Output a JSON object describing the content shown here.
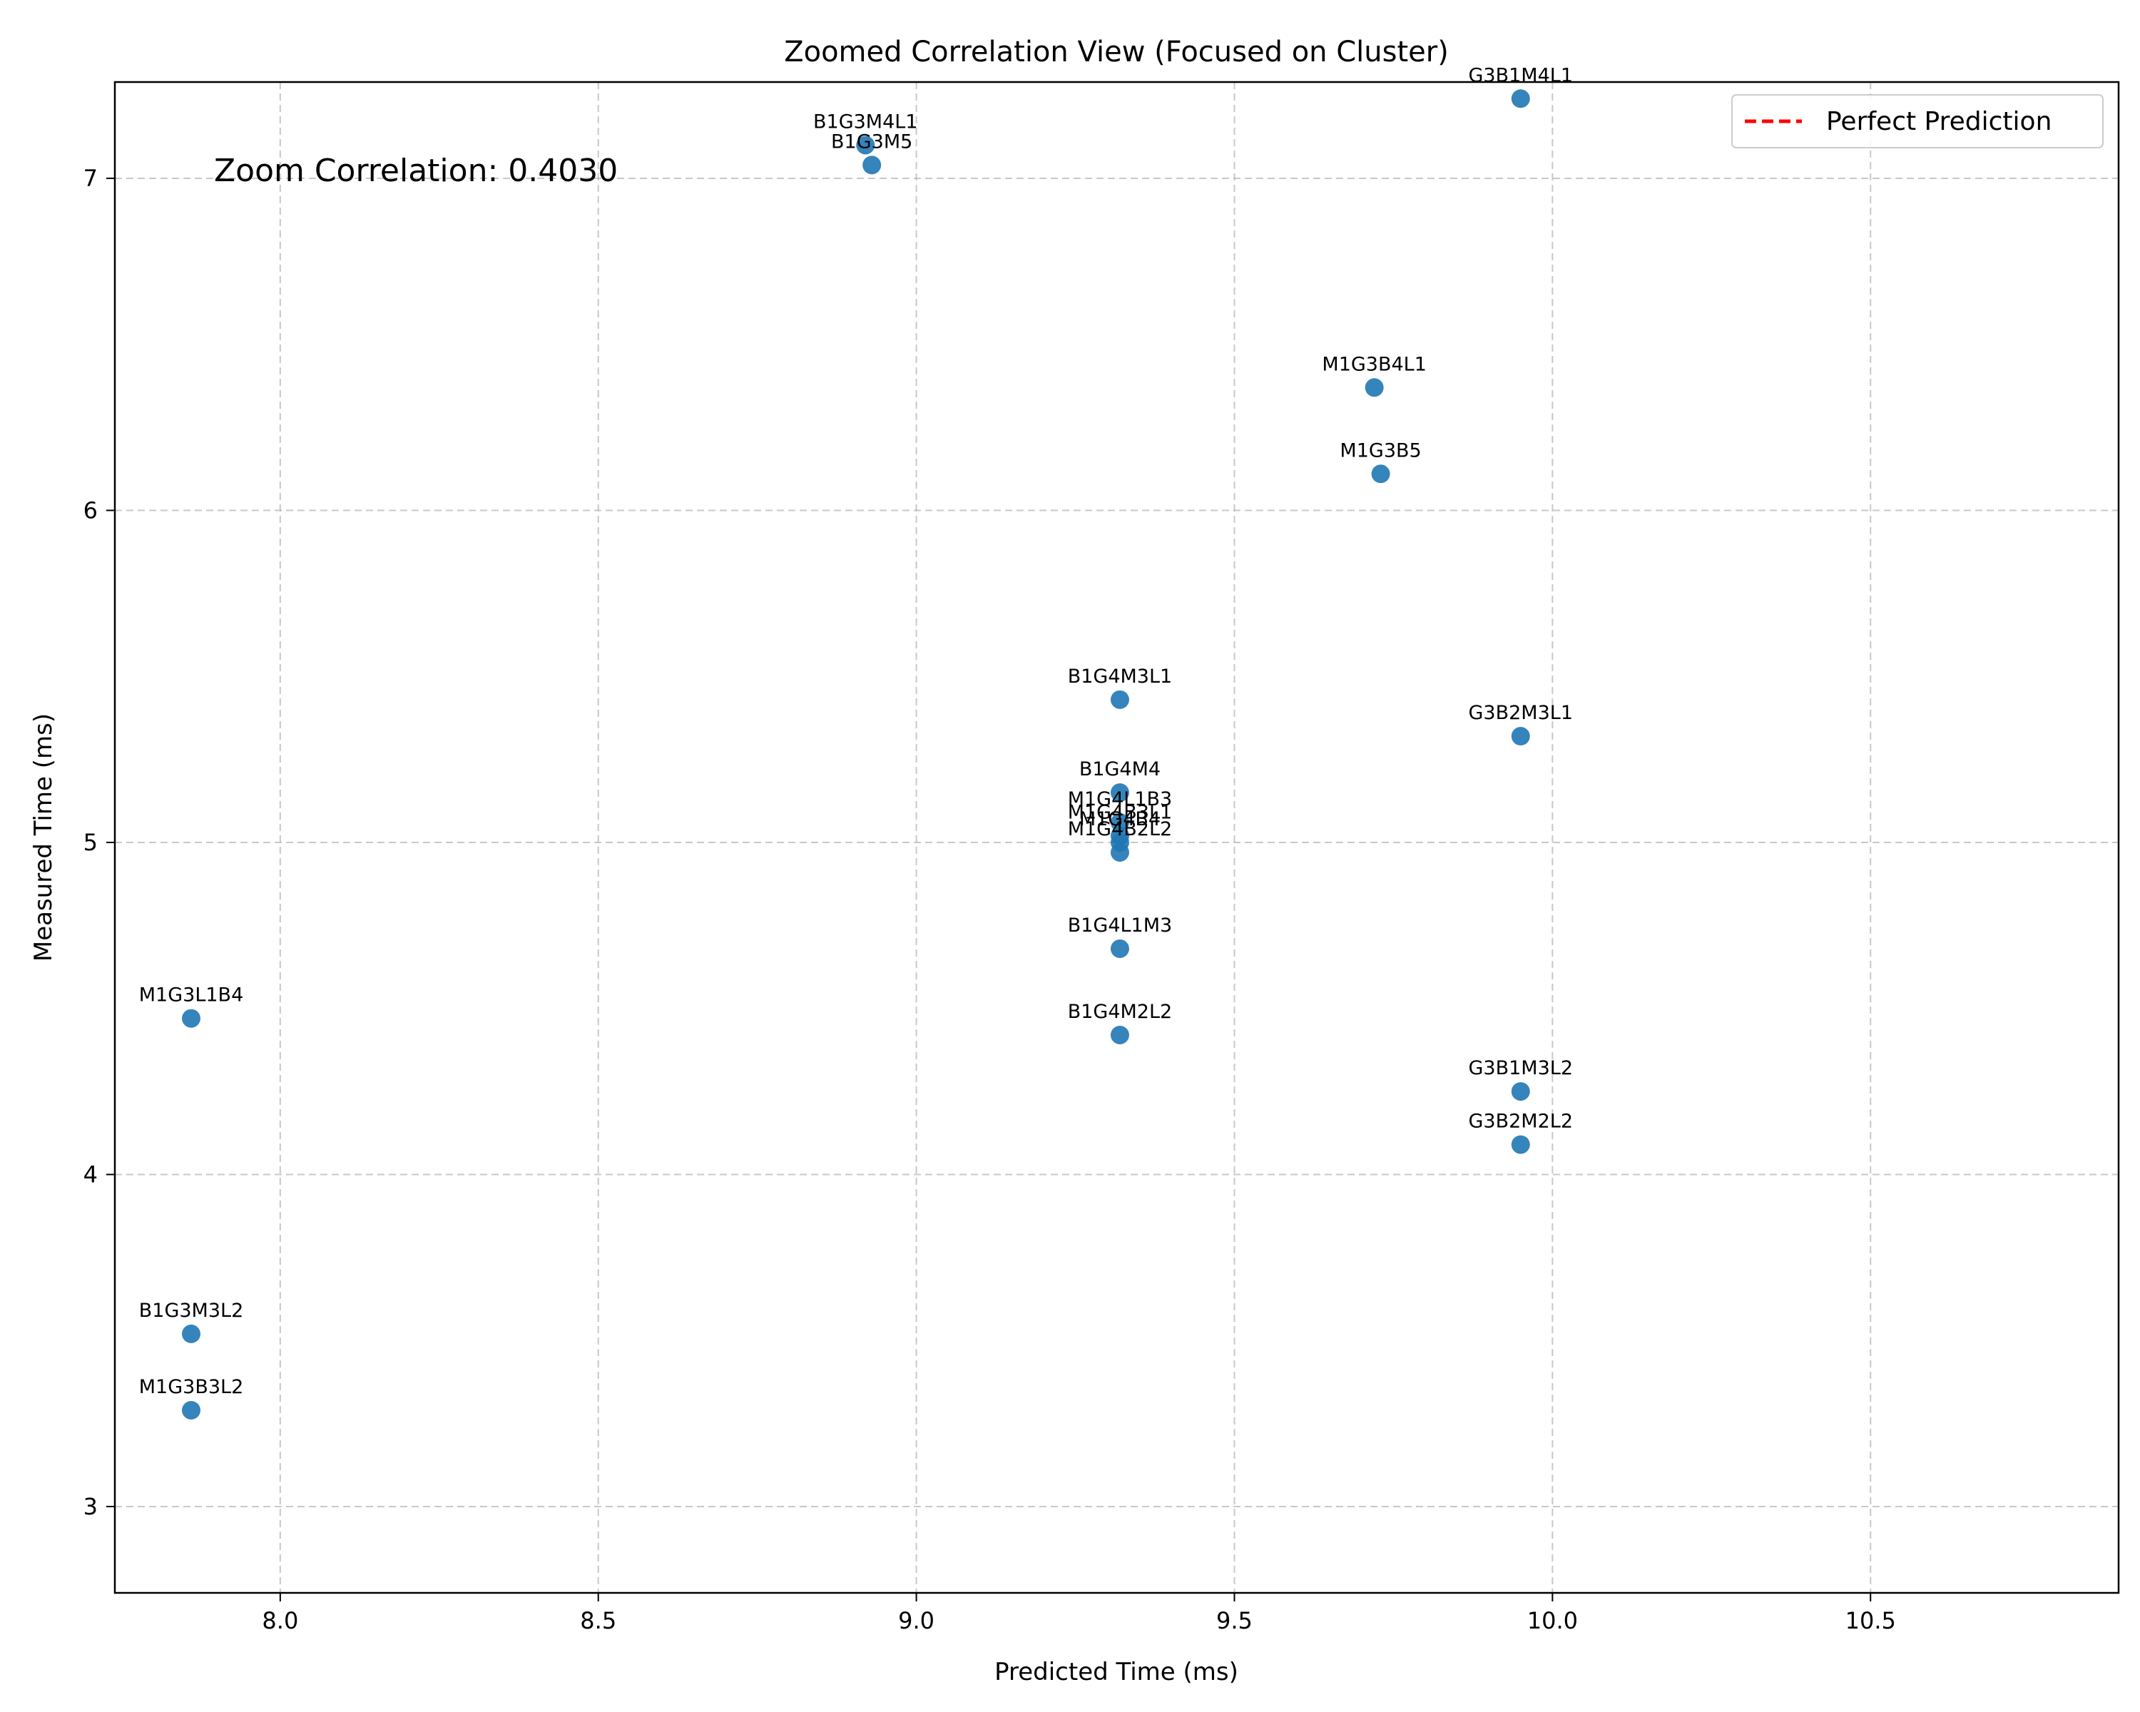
{
  "chart_data": {
    "type": "scatter",
    "title": "Zoomed Correlation View (Focused on Cluster)",
    "xlabel": "Predicted Time (ms)",
    "ylabel": "Measured Time (ms)",
    "xlim": [
      7.74,
      10.89
    ],
    "ylim": [
      2.74,
      7.29
    ],
    "xticks": [
      8.0,
      8.5,
      9.0,
      9.5,
      10.0,
      10.5
    ],
    "xtick_labels": [
      "8.0",
      "8.5",
      "9.0",
      "9.5",
      "10.0",
      "10.5"
    ],
    "yticks": [
      3,
      4,
      5,
      6,
      7
    ],
    "ytick_labels": [
      "3",
      "4",
      "5",
      "6",
      "7"
    ],
    "grid": true,
    "annotation": "Zoom Correlation: 0.4030",
    "legend": {
      "position": "top-right",
      "entries": [
        {
          "label": "Perfect Prediction",
          "style": "dashed",
          "color": "#ff0000"
        }
      ]
    },
    "marker_color": "#1f77b4",
    "points": [
      {
        "label": "G3B1M4L1",
        "x": 9.95,
        "y": 7.24
      },
      {
        "label": "B1G3M4L1",
        "x": 8.92,
        "y": 7.1
      },
      {
        "label": "B1G3M5",
        "x": 8.93,
        "y": 7.04
      },
      {
        "label": "M1G3B4L1",
        "x": 9.72,
        "y": 6.37
      },
      {
        "label": "M1G3B5",
        "x": 9.73,
        "y": 6.11
      },
      {
        "label": "B1G4M3L1",
        "x": 9.32,
        "y": 5.43
      },
      {
        "label": "G3B2M3L1",
        "x": 9.95,
        "y": 5.32
      },
      {
        "label": "B1G4M4",
        "x": 9.32,
        "y": 5.15
      },
      {
        "label": "M1G4L1B3",
        "x": 9.32,
        "y": 5.06
      },
      {
        "label": "M1G4B3L1",
        "x": 9.32,
        "y": 5.02
      },
      {
        "label": "M1G4B4",
        "x": 9.32,
        "y": 5.0
      },
      {
        "label": "M1G4B2L2",
        "x": 9.32,
        "y": 4.97
      },
      {
        "label": "B1G4L1M3",
        "x": 9.32,
        "y": 4.68
      },
      {
        "label": "M1G3L1B4",
        "x": 7.86,
        "y": 4.47
      },
      {
        "label": "B1G4M2L2",
        "x": 9.32,
        "y": 4.42
      },
      {
        "label": "G3B1M3L2",
        "x": 9.95,
        "y": 4.25
      },
      {
        "label": "G3B2M2L2",
        "x": 9.95,
        "y": 4.09
      },
      {
        "label": "B1G3M3L2",
        "x": 7.86,
        "y": 3.52
      },
      {
        "label": "M1G3B3L2",
        "x": 7.86,
        "y": 3.29
      }
    ]
  }
}
